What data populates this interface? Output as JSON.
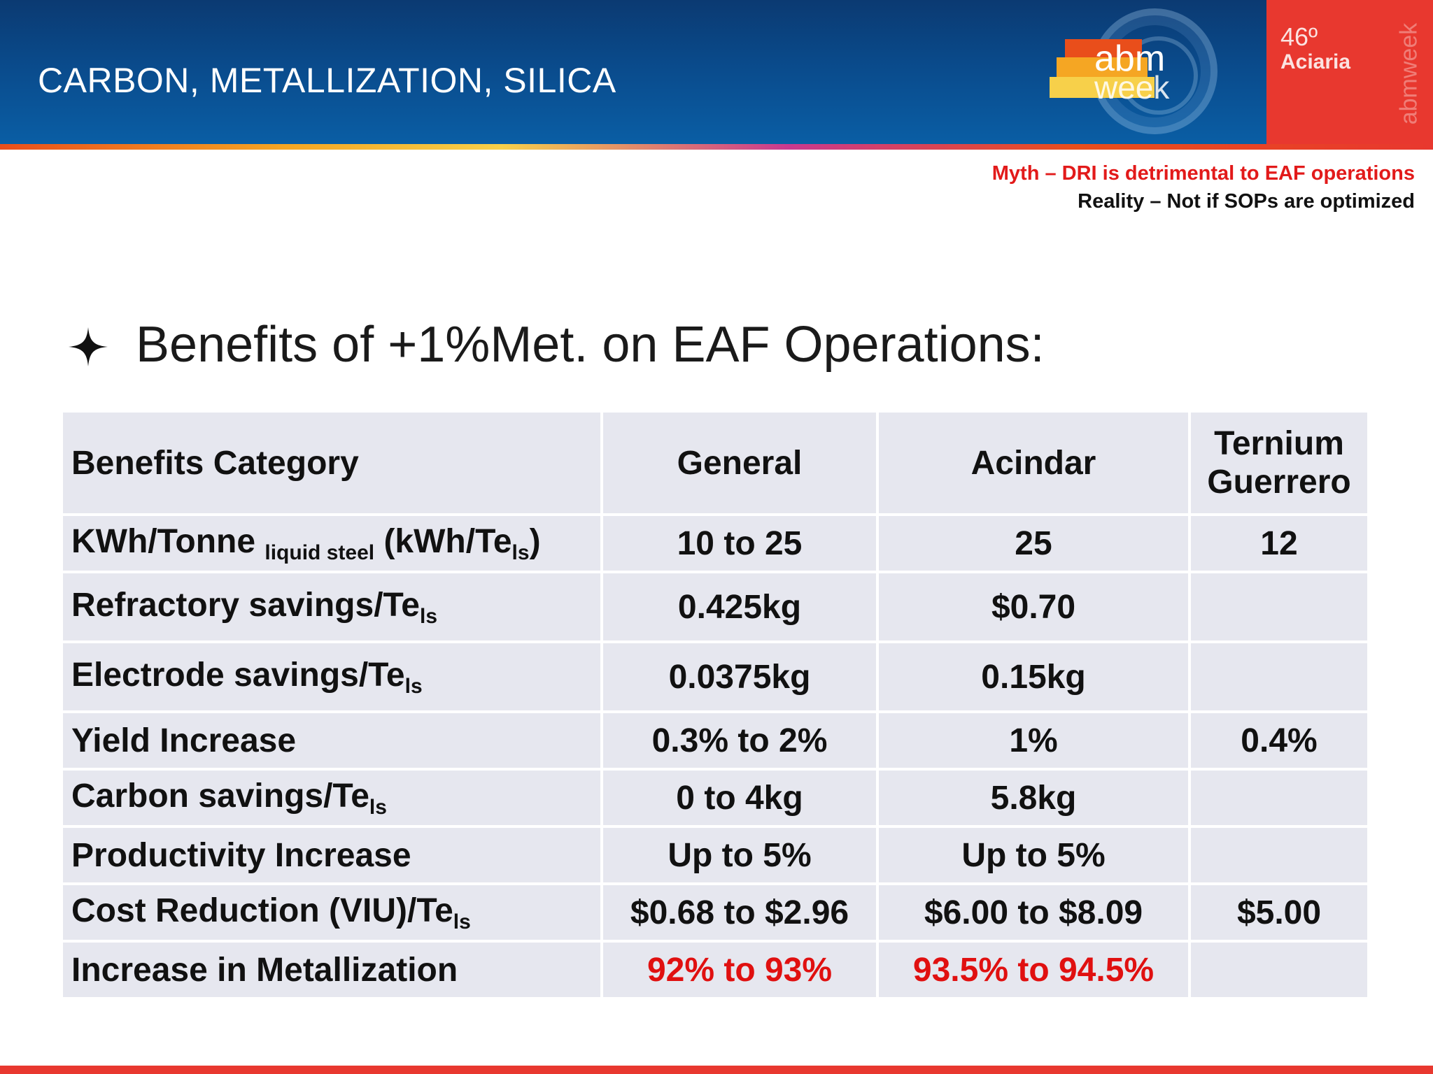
{
  "header": {
    "title": "CARBON, METALLIZATION, SILICA",
    "logo_abm": "abm",
    "logo_week": "week",
    "event_number": "46º",
    "event_name": "Aciaria",
    "vertical_brand": "abmweek"
  },
  "notes": {
    "myth": "Myth – DRI is detrimental to EAF operations",
    "reality": "Reality – Not if SOPs are optimized"
  },
  "heading": "Benefits of +1%Met. on EAF Operations:",
  "colors": {
    "header_blue": "#0a4b8c",
    "accent_red": "#e8382f",
    "cell_gray": "#e6e7ef",
    "highlight_red": "#e01010"
  },
  "table": {
    "headers": [
      "Benefits Category",
      "General",
      "Acindar",
      "Ternium",
      "Guerrero"
    ],
    "rows": [
      {
        "category": "KWh/Tonne",
        "category_sub": "liquid steel",
        "category_suffix": "(kWh/Te",
        "category_suffix_sub": "ls",
        "category_tail": ")",
        "general": "10 to 25",
        "acindar": "25",
        "ternium": "12"
      },
      {
        "category": "Refractory savings/Te",
        "category_sub": "ls",
        "general": "0.425kg",
        "acindar": "$0.70",
        "ternium": ""
      },
      {
        "category": "Electrode savings/Te",
        "category_sub": "ls",
        "general": "0.0375kg",
        "acindar": "0.15kg",
        "ternium": ""
      },
      {
        "category": "Yield Increase",
        "general": "0.3% to 2%",
        "acindar": "1%",
        "ternium": "0.4%"
      },
      {
        "category": "Carbon savings/Te",
        "category_sub": "ls",
        "general": "0 to 4kg",
        "acindar": "5.8kg",
        "ternium": ""
      },
      {
        "category": "Productivity Increase",
        "general": "Up to 5%",
        "acindar": "Up to 5%",
        "ternium": ""
      },
      {
        "category": "Cost Reduction (VIU)/Te",
        "category_sub": "ls",
        "general": "$0.68 to $2.96",
        "acindar": "$6.00 to $8.09",
        "ternium": "$5.00"
      },
      {
        "category": "Increase in Metallization",
        "general": "92% to 93%",
        "acindar": "93.5% to 94.5%",
        "ternium": ""
      }
    ]
  }
}
